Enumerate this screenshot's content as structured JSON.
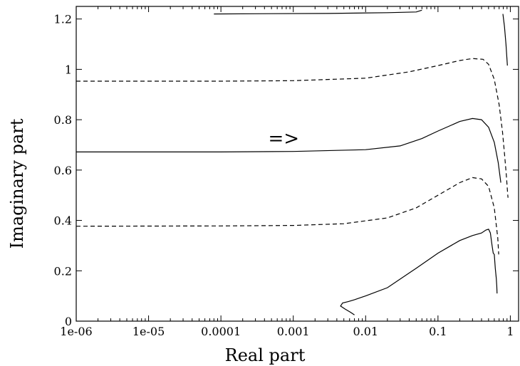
{
  "chart_data": {
    "type": "line",
    "xlabel": "Real part",
    "ylabel": "Imaginary part",
    "xscale": "log",
    "xlim": [
      1e-06,
      1.3
    ],
    "ylim": [
      0,
      1.25
    ],
    "x_ticks": [
      {
        "value": 1e-06,
        "label": "1e-06"
      },
      {
        "value": 1e-05,
        "label": "1e-05"
      },
      {
        "value": 0.0001,
        "label": "0.0001"
      },
      {
        "value": 0.001,
        "label": "0.001"
      },
      {
        "value": 0.01,
        "label": "0.01"
      },
      {
        "value": 0.1,
        "label": "0.1"
      },
      {
        "value": 1,
        "label": "1"
      }
    ],
    "y_ticks": [
      {
        "value": 0,
        "label": "0"
      },
      {
        "value": 0.2,
        "label": "0.2"
      },
      {
        "value": 0.4,
        "label": "0.4"
      },
      {
        "value": 0.6,
        "label": "0.6"
      },
      {
        "value": 0.8,
        "label": "0.8"
      },
      {
        "value": 1,
        "label": "1"
      },
      {
        "value": 1.2,
        "label": "1.2"
      }
    ],
    "annotations": [
      {
        "text": "=>",
        "x": 0.00045,
        "y": 0.73
      }
    ],
    "series": [
      {
        "style": "solid",
        "points": [
          [
            8e-05,
            1.22
          ],
          [
            0.0003,
            1.221
          ],
          [
            0.003,
            1.222
          ],
          [
            0.02,
            1.225
          ],
          [
            0.05,
            1.228
          ],
          [
            0.06,
            1.235
          ]
        ]
      },
      {
        "style": "solid",
        "points": [
          [
            0.79,
            1.22
          ],
          [
            0.83,
            1.17
          ],
          [
            0.87,
            1.1
          ],
          [
            0.91,
            1.015
          ]
        ]
      },
      {
        "style": "dashed",
        "points": [
          [
            1e-06,
            0.953
          ],
          [
            0.0001,
            0.953
          ],
          [
            0.001,
            0.955
          ],
          [
            0.01,
            0.965
          ],
          [
            0.04,
            0.99
          ],
          [
            0.1,
            1.015
          ],
          [
            0.2,
            1.035
          ],
          [
            0.3,
            1.043
          ],
          [
            0.42,
            1.04
          ],
          [
            0.5,
            1.02
          ],
          [
            0.6,
            0.96
          ],
          [
            0.7,
            0.86
          ],
          [
            0.78,
            0.75
          ],
          [
            0.84,
            0.65
          ],
          [
            0.88,
            0.58
          ],
          [
            0.92,
            0.505
          ],
          [
            0.93,
            0.49
          ]
        ]
      },
      {
        "style": "solid",
        "points": [
          [
            1e-06,
            0.672
          ],
          [
            0.0001,
            0.672
          ],
          [
            0.001,
            0.674
          ],
          [
            0.01,
            0.681
          ],
          [
            0.03,
            0.696
          ],
          [
            0.06,
            0.725
          ],
          [
            0.1,
            0.755
          ],
          [
            0.2,
            0.793
          ],
          [
            0.3,
            0.805
          ],
          [
            0.4,
            0.8
          ],
          [
            0.5,
            0.77
          ],
          [
            0.6,
            0.71
          ],
          [
            0.68,
            0.63
          ],
          [
            0.74,
            0.55
          ]
        ]
      },
      {
        "style": "dashed",
        "points": [
          [
            1e-06,
            0.377
          ],
          [
            0.0001,
            0.378
          ],
          [
            0.001,
            0.38
          ],
          [
            0.005,
            0.387
          ],
          [
            0.02,
            0.41
          ],
          [
            0.05,
            0.45
          ],
          [
            0.1,
            0.5
          ],
          [
            0.2,
            0.55
          ],
          [
            0.3,
            0.57
          ],
          [
            0.4,
            0.565
          ],
          [
            0.5,
            0.535
          ],
          [
            0.6,
            0.45
          ],
          [
            0.67,
            0.33
          ],
          [
            0.69,
            0.265
          ]
        ]
      },
      {
        "style": "solid",
        "points": [
          [
            0.007,
            0.025
          ],
          [
            0.0062,
            0.035
          ],
          [
            0.0052,
            0.048
          ],
          [
            0.0045,
            0.06
          ],
          [
            0.0048,
            0.072
          ],
          [
            0.0058,
            0.078
          ],
          [
            0.007,
            0.085
          ],
          [
            0.01,
            0.1
          ],
          [
            0.02,
            0.133
          ],
          [
            0.05,
            0.21
          ],
          [
            0.1,
            0.27
          ],
          [
            0.2,
            0.32
          ],
          [
            0.3,
            0.34
          ],
          [
            0.4,
            0.35
          ],
          [
            0.46,
            0.362
          ],
          [
            0.5,
            0.365
          ],
          [
            0.53,
            0.35
          ],
          [
            0.56,
            0.3
          ],
          [
            0.58,
            0.27
          ],
          [
            0.6,
            0.265
          ],
          [
            0.62,
            0.21
          ],
          [
            0.64,
            0.17
          ],
          [
            0.65,
            0.14
          ],
          [
            0.655,
            0.11
          ]
        ]
      }
    ]
  }
}
